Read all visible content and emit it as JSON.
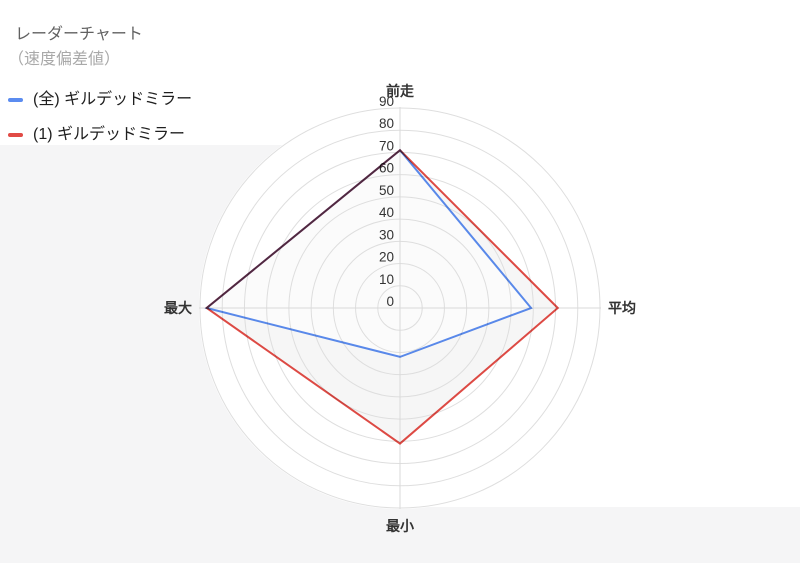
{
  "header": {
    "title": "レーダーチャート",
    "subtitle": "（速度偏差値）"
  },
  "legend": [
    {
      "label": "(全) ギルデッドミラー",
      "color": "#5b8cf0"
    },
    {
      "label": "(1) ギルデッドミラー",
      "color": "#e14b45"
    }
  ],
  "chart_data": {
    "type": "radar",
    "categories": [
      "前走",
      "平均",
      "最小",
      "最大"
    ],
    "series": [
      {
        "name": "(全) ギルデッドミラー",
        "color": "#5b8cf0",
        "values": [
          71,
          59,
          22,
          87
        ]
      },
      {
        "name": "(1) ギルデッドミラー",
        "color": "#e14b45",
        "values": [
          71,
          71,
          61,
          87
        ]
      }
    ],
    "radial_ticks": [
      0,
      10,
      20,
      30,
      40,
      50,
      60,
      70,
      80,
      90
    ],
    "rlim": [
      0,
      90
    ],
    "grid": "circular",
    "legend_position": "top-left"
  },
  "colors": {
    "panel_gray": "#f5f5f6",
    "plot_bg": "#ffffff",
    "grid_ring": "#dedede",
    "grid_axis": "#d9d9d9",
    "tick_text": "#333333",
    "axis_text": "#333333",
    "series_fill_shade": "rgba(80,80,80,0.05)",
    "series_fill_lighten": "rgba(255,255,255,0.6)"
  }
}
